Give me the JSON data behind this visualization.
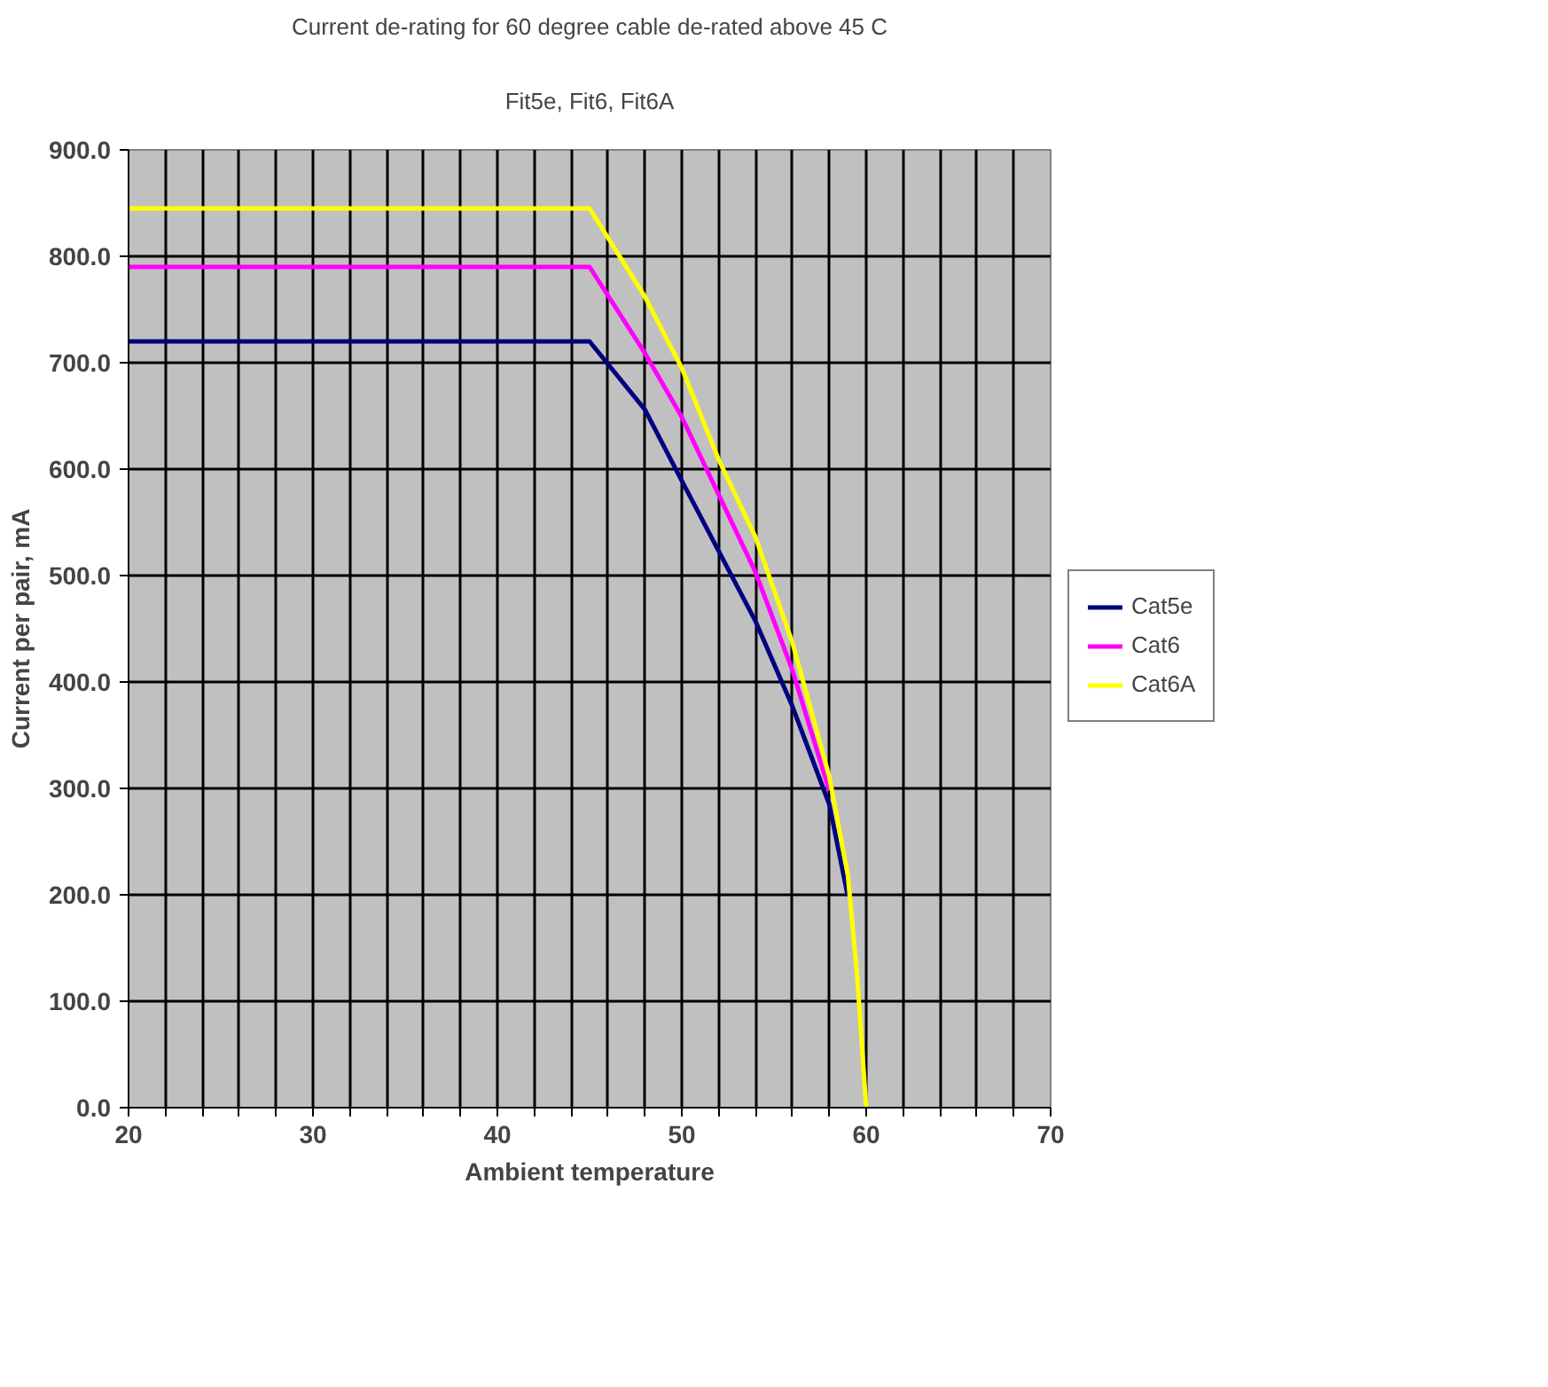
{
  "chart_data": {
    "type": "line",
    "title": "Current de-rating for 60 degree cable de-rated above 45 C",
    "subtitle": "Fit5e, Fit6, Fit6A",
    "xlabel": "Ambient temperature",
    "ylabel": "Current per pair, mA",
    "xlim": [
      20,
      70
    ],
    "ylim": [
      0,
      900
    ],
    "xticks": [
      20,
      {
        "value": 22,
        "label": null
      },
      {
        "value": 24,
        "label": null
      },
      {
        "value": 26,
        "label": null
      },
      {
        "value": 28,
        "label": null
      },
      30,
      {
        "value": 32,
        "label": null
      },
      {
        "value": 34,
        "label": null
      },
      {
        "value": 36,
        "label": null
      },
      {
        "value": 38,
        "label": null
      },
      40,
      {
        "value": 42,
        "label": null
      },
      {
        "value": 44,
        "label": null
      },
      {
        "value": 46,
        "label": null
      },
      {
        "value": 48,
        "label": null
      },
      50,
      {
        "value": 52,
        "label": null
      },
      {
        "value": 54,
        "label": null
      },
      {
        "value": 56,
        "label": null
      },
      {
        "value": 58,
        "label": null
      },
      60,
      {
        "value": 62,
        "label": null
      },
      {
        "value": 64,
        "label": null
      },
      {
        "value": 66,
        "label": null
      },
      {
        "value": 68,
        "label": null
      },
      70
    ],
    "yticks": [
      {
        "value": 0,
        "label": "0.0"
      },
      {
        "value": 100,
        "label": "100.0"
      },
      {
        "value": 200,
        "label": "200.0"
      },
      {
        "value": 300,
        "label": "300.0"
      },
      {
        "value": 400,
        "label": "400.0"
      },
      {
        "value": 500,
        "label": "500.0"
      },
      {
        "value": 600,
        "label": "600.0"
      },
      {
        "value": 700,
        "label": "700.0"
      },
      {
        "value": 800,
        "label": "800.0"
      },
      {
        "value": 900,
        "label": "900.0"
      }
    ],
    "grid": true,
    "legend": "right",
    "line_style": "solid",
    "marker": "none",
    "series": [
      {
        "name": "Cat5e",
        "color": "#000080",
        "x": [
          20,
          45,
          48,
          50,
          54,
          56,
          58,
          59
        ],
        "values": [
          720,
          720,
          656,
          589,
          457,
          377,
          285,
          199
        ]
      },
      {
        "name": "Cat6",
        "color": "#ff00ff",
        "x": [
          20,
          45,
          48,
          50,
          54,
          56,
          58
        ],
        "values": [
          790,
          790,
          709,
          649,
          503,
          411,
          298
        ]
      },
      {
        "name": "Cat6A",
        "color": "#ffff00",
        "x": [
          20,
          45,
          48,
          50,
          52,
          54,
          56,
          58,
          59,
          59.5,
          60
        ],
        "values": [
          845,
          845,
          762,
          695,
          609,
          536,
          437,
          311,
          219,
          126,
          0
        ]
      }
    ]
  }
}
